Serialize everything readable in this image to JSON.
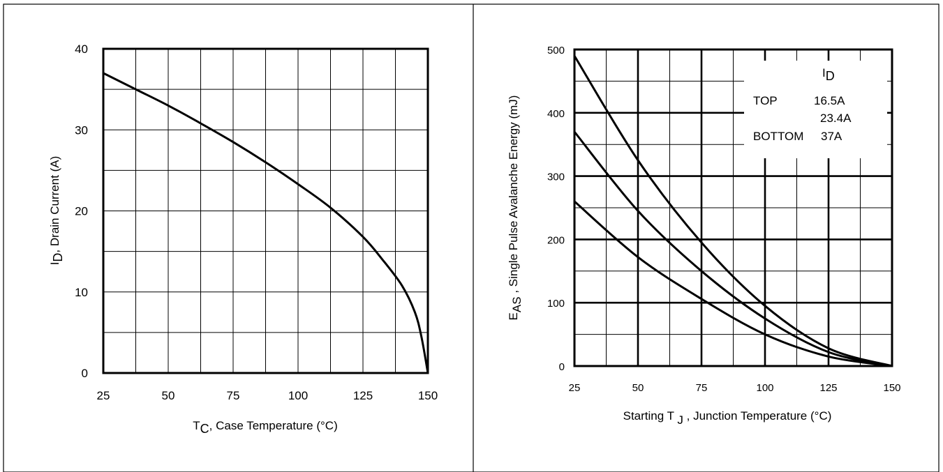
{
  "chart_data": [
    {
      "type": "line",
      "title": "",
      "xlabel": {
        "symbol": "T",
        "sub": "C",
        "rest": ", Case Temperature (°C)"
      },
      "ylabel": {
        "symbol": "I",
        "sub": "D",
        "rest": ",  Drain Current  (A)"
      },
      "xlim": [
        25,
        150
      ],
      "ylim": [
        0,
        40
      ],
      "xticks": [
        "25",
        "50",
        "75",
        "100",
        "125",
        "150"
      ],
      "yticks": [
        "0",
        "10",
        "20",
        "30",
        "40"
      ],
      "grid": true,
      "series": [
        {
          "x": [
            25,
            37.5,
            50,
            62.5,
            75,
            87.5,
            100,
            112.5,
            125,
            132.5,
            140,
            145,
            147.5,
            150
          ],
          "y": [
            37,
            35,
            33,
            30.8,
            28.5,
            26,
            23.3,
            20.4,
            16.8,
            14,
            10.8,
            7.5,
            4.5,
            0
          ]
        }
      ]
    },
    {
      "type": "line",
      "title": "",
      "xlabel": {
        "pre": "Starting T ",
        "sub": "J",
        "rest": " , Junction Temperature (°C)"
      },
      "ylabel": {
        "symbol": "E",
        "sub": "AS",
        "rest": " , Single Pulse Avalanche Energy (mJ)"
      },
      "xlim": [
        25,
        150
      ],
      "ylim": [
        0,
        500
      ],
      "xticks": [
        "25",
        "50",
        "75",
        "100",
        "125",
        "150"
      ],
      "yticks": [
        "0",
        "100",
        "200",
        "300",
        "400",
        "500"
      ],
      "grid": true,
      "legend": {
        "header_symbol": "I",
        "header_sub": "D",
        "rows": [
          {
            "label": "TOP",
            "value": "16.5A"
          },
          {
            "label": "",
            "value": "23.4A"
          },
          {
            "label": "BOTTOM",
            "value": "37A"
          }
        ],
        "placement": "top-right"
      },
      "series": [
        {
          "name": "16.5A",
          "x": [
            25,
            50,
            75,
            100,
            125,
            150
          ],
          "y": [
            490,
            325,
            195,
            95,
            28,
            0
          ]
        },
        {
          "name": "23.4A",
          "x": [
            25,
            50,
            75,
            100,
            125,
            150
          ],
          "y": [
            370,
            245,
            150,
            75,
            22,
            0
          ]
        },
        {
          "name": "37A",
          "x": [
            25,
            50,
            75,
            100,
            125,
            150
          ],
          "y": [
            260,
            172,
            106,
            50,
            15,
            0
          ]
        }
      ]
    }
  ]
}
